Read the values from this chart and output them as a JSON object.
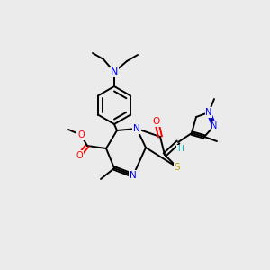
{
  "bg_color": "#ebebeb",
  "atom_colors": {
    "C": "#000000",
    "N": "#0000ff",
    "O": "#ff0000",
    "S": "#b8a000",
    "H": "#00aaaa"
  },
  "figsize": [
    3.0,
    3.0
  ],
  "dpi": 100,
  "lw": 1.4,
  "fs": 7.0
}
